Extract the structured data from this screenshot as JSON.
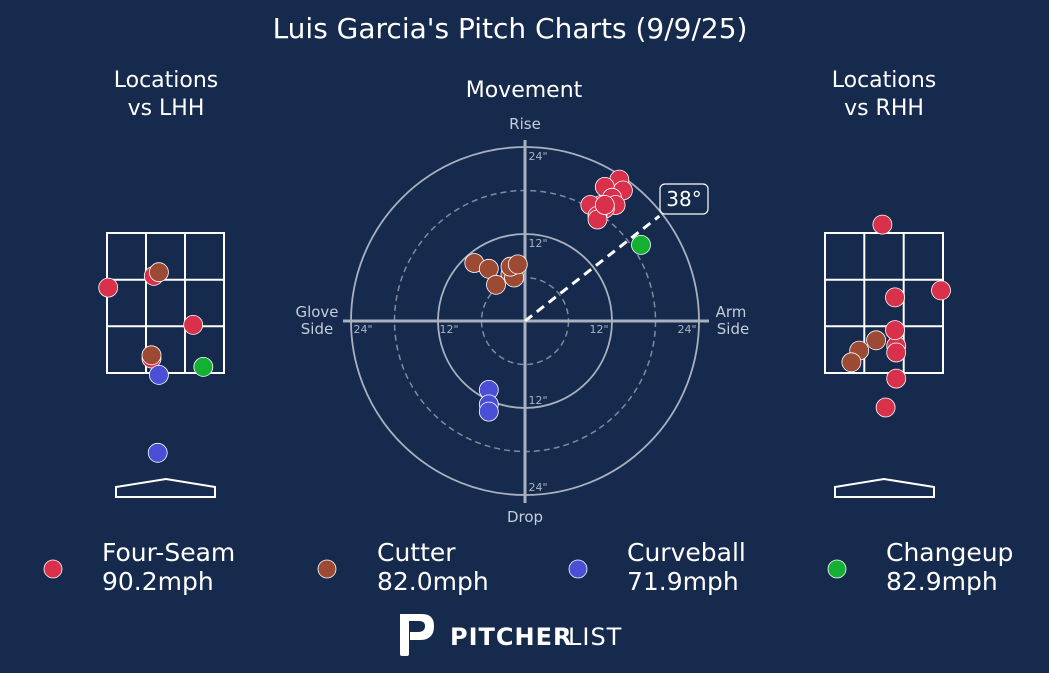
{
  "title": "Luis Garcia's Pitch Charts (9/9/25)",
  "colors": {
    "background": "#152a4c",
    "four_seam": "#d9304b",
    "cutter": "#9c4a34",
    "curveball": "#4a4fd6",
    "changeup": "#14b034"
  },
  "panels": {
    "lhh_title": [
      "Locations",
      "vs LHH"
    ],
    "movement_title": "Movement",
    "rhh_title": [
      "Locations",
      "vs RHH"
    ]
  },
  "movement_axes": {
    "top": "Rise",
    "bottom": "Drop",
    "left": [
      "Glove",
      "Side"
    ],
    "right": [
      "Arm",
      "Side"
    ],
    "ring_labels": [
      "12\"",
      "24\""
    ],
    "arm_angle_label": "38°"
  },
  "legend": [
    {
      "name": "Four-Seam",
      "speed": "90.2mph",
      "color": "#d9304b"
    },
    {
      "name": "Cutter",
      "speed": "82.0mph",
      "color": "#9c4a34"
    },
    {
      "name": "Curveball",
      "speed": "71.9mph",
      "color": "#4a4fd6"
    },
    {
      "name": "Changeup",
      "speed": "82.9mph",
      "color": "#14b034"
    }
  ],
  "logo": {
    "bold": "PITCHER",
    "light": "LIST"
  },
  "chart_data": [
    {
      "type": "scatter",
      "title": "Movement",
      "units": "inches",
      "arm_angle_deg": 38,
      "rings": [
        6,
        12,
        18,
        24
      ],
      "series": [
        {
          "name": "Four-Seam",
          "color": "#d9304b",
          "points": [
            [
              13,
              19.5
            ],
            [
              11,
              18.5
            ],
            [
              13.5,
              18
            ],
            [
              12,
              17
            ],
            [
              10.5,
              16
            ],
            [
              12.5,
              16
            ],
            [
              9,
              16
            ],
            [
              11,
              15.5
            ],
            [
              10,
              14.5
            ],
            [
              10,
              14
            ],
            [
              11,
              16
            ]
          ]
        },
        {
          "name": "Cutter",
          "color": "#9c4a34",
          "points": [
            [
              -7,
              8
            ],
            [
              -5,
              7.2
            ],
            [
              -2,
              6.5
            ],
            [
              -1.5,
              6
            ],
            [
              -4,
              5
            ],
            [
              -2,
              7.5
            ],
            [
              -1,
              7.8
            ]
          ]
        },
        {
          "name": "Curveball",
          "color": "#4a4fd6",
          "points": [
            [
              -5,
              -9.5
            ],
            [
              -5,
              -11.5
            ],
            [
              -5,
              -12.5
            ]
          ]
        },
        {
          "name": "Changeup",
          "color": "#14b034",
          "points": [
            [
              16,
              10.5
            ]
          ]
        }
      ]
    },
    {
      "type": "scatter",
      "title": "Locations vs LHH",
      "zone_cols": 3,
      "zone_rows": 3,
      "series": [
        {
          "name": "Four-Seam",
          "color": "#d9304b",
          "points": [
            [
              0.71,
              -0.47
            ],
            [
              -0.3,
              0.58
            ],
            [
              -1.47,
              0.33
            ],
            [
              -0.36,
              -1.19
            ]
          ]
        },
        {
          "name": "Cutter",
          "color": "#9c4a34",
          "points": [
            [
              -0.17,
              0.66
            ],
            [
              -0.36,
              -1.12
            ]
          ]
        },
        {
          "name": "Curveball",
          "color": "#4a4fd6",
          "points": [
            [
              -0.17,
              -1.54
            ],
            [
              -0.2,
              -3.21
            ]
          ]
        },
        {
          "name": "Changeup",
          "color": "#14b034",
          "points": [
            [
              0.97,
              -1.37
            ]
          ]
        }
      ]
    },
    {
      "type": "scatter",
      "title": "Locations vs RHH",
      "zone_cols": 3,
      "zone_rows": 3,
      "series": [
        {
          "name": "Four-Seam",
          "color": "#d9304b",
          "points": [
            [
              -0.04,
              1.68
            ],
            [
              0.28,
              0.12
            ],
            [
              1.45,
              0.27
            ],
            [
              0.31,
              -0.92
            ],
            [
              0.28,
              -0.58
            ],
            [
              0.31,
              -1.06
            ],
            [
              0.31,
              -1.62
            ],
            [
              0.04,
              -2.24
            ]
          ]
        },
        {
          "name": "Cutter",
          "color": "#9c4a34",
          "points": [
            [
              -0.63,
              -1.02
            ],
            [
              -0.83,
              -1.27
            ],
            [
              -0.2,
              -0.8
            ]
          ]
        }
      ]
    }
  ]
}
